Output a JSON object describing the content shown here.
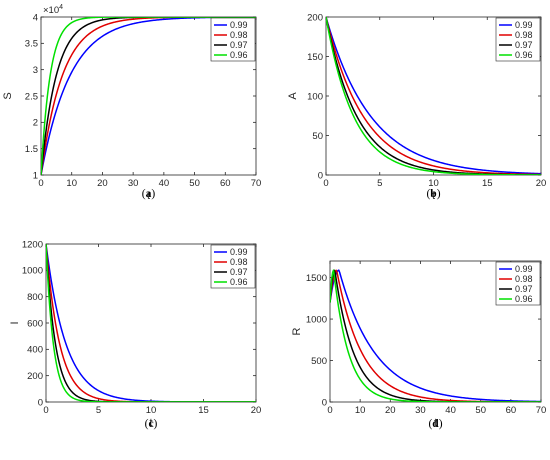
{
  "colors": {
    "0.99": "#0000ff",
    "0.98": "#e00000",
    "0.97": "#000000",
    "0.96": "#00e000"
  },
  "legend": [
    "0.99",
    "0.98",
    "0.97",
    "0.96"
  ],
  "chart_data": [
    {
      "type": "line",
      "panel_label": "(a)",
      "xlabel": "t",
      "ylabel": "S",
      "scale_label": "×10",
      "scale_exponent": "4",
      "xlim": [
        0,
        70
      ],
      "ylim": [
        1,
        4
      ],
      "xticks": [
        0,
        10,
        20,
        30,
        40,
        50,
        60,
        70
      ],
      "yticks": [
        1,
        1.5,
        2,
        2.5,
        3,
        3.5,
        4
      ],
      "legend_position": "top-right",
      "model": {
        "kind": "rise",
        "start": 1,
        "end": 4,
        "taus": [
          9.5,
          7,
          5,
          3
        ]
      },
      "series": [
        {
          "name": "0.99",
          "x": [
            0,
            5,
            10,
            15,
            20,
            30,
            40,
            50,
            60,
            70
          ],
          "y": [
            1,
            2.27,
            3.03,
            3.46,
            3.68,
            3.9,
            3.97,
            3.99,
            4.0,
            4.0
          ]
        },
        {
          "name": "0.98",
          "x": [
            0,
            5,
            10,
            15,
            20,
            30,
            40,
            50,
            60,
            70
          ],
          "y": [
            1,
            2.61,
            3.4,
            3.75,
            3.88,
            3.98,
            4.0,
            4.0,
            4.0,
            4.0
          ]
        },
        {
          "name": "0.97",
          "x": [
            0,
            5,
            10,
            15,
            20,
            30,
            40,
            50,
            60,
            70
          ],
          "y": [
            1,
            3.1,
            3.71,
            3.93,
            3.97,
            4.0,
            4.0,
            4.0,
            4.0,
            4.0
          ]
        },
        {
          "name": "0.96",
          "x": [
            0,
            5,
            10,
            15,
            20,
            30,
            40,
            50,
            60,
            70
          ],
          "y": [
            1,
            3.58,
            3.93,
            3.99,
            4.0,
            4.0,
            4.0,
            4.0,
            4.0,
            4.0
          ]
        }
      ]
    },
    {
      "type": "line",
      "panel_label": "(b)",
      "xlabel": "t",
      "ylabel": "A",
      "xlim": [
        0,
        20
      ],
      "ylim": [
        0,
        200
      ],
      "xticks": [
        0,
        5,
        10,
        15,
        20
      ],
      "yticks": [
        0,
        50,
        100,
        150,
        200
      ],
      "legend_position": "top-right",
      "model": {
        "kind": "decay",
        "start": 200,
        "end": 0,
        "taus": [
          4.2,
          3.5,
          2.9,
          2.6
        ]
      },
      "series": [
        {
          "name": "0.99",
          "x": [
            0,
            2.5,
            5,
            7.5,
            10,
            15,
            20
          ],
          "y": [
            200,
            110,
            61,
            34,
            19,
            6,
            1.7
          ]
        },
        {
          "name": "0.98",
          "x": [
            0,
            2.5,
            5,
            7.5,
            10,
            15,
            20
          ],
          "y": [
            200,
            98,
            48,
            23,
            11,
            3,
            0.7
          ]
        },
        {
          "name": "0.97",
          "x": [
            0,
            2.5,
            5,
            7.5,
            10,
            15,
            20
          ],
          "y": [
            200,
            85,
            36,
            15,
            6.4,
            1.1,
            0.2
          ]
        },
        {
          "name": "0.96",
          "x": [
            0,
            2.5,
            5,
            7.5,
            10,
            15,
            20
          ],
          "y": [
            200,
            76,
            29,
            11,
            4.3,
            0.6,
            0.1
          ]
        }
      ]
    },
    {
      "type": "line",
      "panel_label": "(c)",
      "xlabel": "t",
      "ylabel": "I",
      "xlim": [
        0,
        20
      ],
      "ylim": [
        0,
        1200
      ],
      "xticks": [
        0,
        5,
        10,
        15,
        20
      ],
      "yticks": [
        0,
        200,
        400,
        600,
        800,
        1000,
        1200
      ],
      "legend_position": "top-right",
      "model": {
        "kind": "decay",
        "start": 1200,
        "end": 0,
        "taus": [
          1.9,
          1.3,
          0.9,
          0.7
        ]
      },
      "series": [
        {
          "name": "0.99",
          "x": [
            0,
            1,
            2,
            3,
            5,
            7.5,
            10,
            15,
            20
          ],
          "y": [
            1200,
            710,
            420,
            248,
            86,
            23,
            6,
            0.5,
            0
          ]
        },
        {
          "name": "0.98",
          "x": [
            0,
            1,
            2,
            3,
            5,
            7.5,
            10,
            15,
            20
          ],
          "y": [
            1200,
            555,
            257,
            119,
            26,
            4,
            0.5,
            0,
            0
          ]
        },
        {
          "name": "0.97",
          "x": [
            0,
            1,
            2,
            3,
            5,
            7.5,
            10,
            15,
            20
          ],
          "y": [
            1200,
            395,
            130,
            43,
            5,
            0.3,
            0,
            0,
            0
          ]
        },
        {
          "name": "0.96",
          "x": [
            0,
            1,
            2,
            3,
            5,
            7.5,
            10,
            15,
            20
          ],
          "y": [
            1200,
            288,
            69,
            17,
            1,
            0,
            0,
            0,
            0
          ]
        }
      ]
    },
    {
      "type": "line",
      "panel_label": "(d)",
      "xlabel": "t",
      "ylabel": "R",
      "xlim": [
        0,
        70
      ],
      "ylim": [
        0,
        1700
      ],
      "xticks": [
        0,
        10,
        20,
        30,
        40,
        50,
        60,
        70
      ],
      "yticks": [
        0,
        500,
        1000,
        1500
      ],
      "legend_position": "top-right",
      "model": {
        "kind": "peak",
        "start": 1200,
        "end": 0,
        "peak": 1590,
        "peak_t": [
          3,
          2.2,
          1.6,
          1.2
        ],
        "taus": [
          12,
          8.5,
          6.3,
          5
        ]
      },
      "series": [
        {
          "name": "0.99",
          "x": [
            0,
            3,
            10,
            20,
            30,
            40,
            50,
            60,
            70
          ],
          "y": [
            1200,
            1590,
            889,
            388,
            169,
            74,
            32,
            14,
            6
          ]
        },
        {
          "name": "0.98",
          "x": [
            0,
            2.2,
            10,
            20,
            30,
            40,
            50,
            60,
            70
          ],
          "y": [
            1200,
            1590,
            639,
            197,
            61,
            19,
            6,
            2,
            0.5
          ]
        },
        {
          "name": "0.97",
          "x": [
            0,
            1.6,
            10,
            20,
            30,
            40,
            50,
            60,
            70
          ],
          "y": [
            1200,
            1590,
            420,
            86,
            17,
            4,
            1,
            0,
            0
          ]
        },
        {
          "name": "0.96",
          "x": [
            0,
            1.2,
            10,
            20,
            30,
            40,
            50,
            60,
            70
          ],
          "y": [
            1200,
            1590,
            275,
            37,
            5,
            0.7,
            0,
            0,
            0
          ]
        }
      ]
    }
  ]
}
